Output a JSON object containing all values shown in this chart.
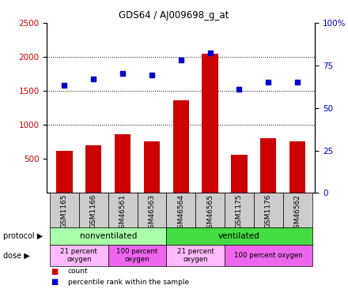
{
  "title": "GDS64 / AJ009698_g_at",
  "samples": [
    "GSM1165",
    "GSM1166",
    "GSM46561",
    "GSM46563",
    "GSM46564",
    "GSM46565",
    "GSM1175",
    "GSM1176",
    "GSM46562"
  ],
  "counts": [
    620,
    700,
    860,
    760,
    1360,
    2040,
    560,
    800,
    760
  ],
  "percentile_ranks": [
    63,
    67,
    70,
    69,
    78,
    82,
    61,
    65,
    65
  ],
  "ylim_left": [
    0,
    2500
  ],
  "ylim_right": [
    0,
    100
  ],
  "yticks_left": [
    500,
    1000,
    1500,
    2000,
    2500
  ],
  "yticks_right": [
    0,
    25,
    50,
    75,
    100
  ],
  "bar_color": "#cc0000",
  "dot_color": "#0000cc",
  "protocol_groups": [
    {
      "label": "nonventilated",
      "start": 0,
      "end": 4,
      "color": "#aaffaa"
    },
    {
      "label": "ventilated",
      "start": 4,
      "end": 9,
      "color": "#44dd44"
    }
  ],
  "dose_groups": [
    {
      "label": "21 percent\noxygen",
      "start": 0,
      "end": 2,
      "color": "#ffbbff"
    },
    {
      "label": "100 percent\noxygen",
      "start": 2,
      "end": 4,
      "color": "#ee66ee"
    },
    {
      "label": "21 percent\noxygen",
      "start": 4,
      "end": 6,
      "color": "#ffbbff"
    },
    {
      "label": "100 percent oxygen",
      "start": 6,
      "end": 9,
      "color": "#ee66ee"
    }
  ],
  "bg_color": "#ffffff",
  "tick_label_color_left": "#cc0000",
  "tick_label_color_right": "#0000cc",
  "xtick_bg_color": "#cccccc",
  "grid_yticks": [
    1000,
    1500,
    2000
  ]
}
